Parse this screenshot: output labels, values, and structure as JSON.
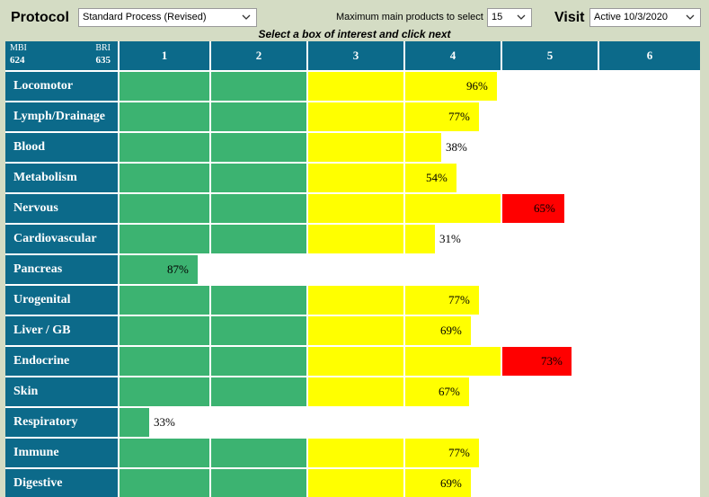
{
  "header": {
    "protocol_label": "Protocol",
    "protocol_value": "Standard Process (Revised)",
    "max_label": "Maximum main products to select",
    "max_value": "15",
    "visit_label": "Visit",
    "visit_value": "Active 10/3/2020",
    "instruction": "Select a box of interest and click next"
  },
  "grid": {
    "corner": {
      "mbi_label": "MBI",
      "mbi_value": "624",
      "bri_label": "BRI",
      "bri_value": "635"
    },
    "columns": [
      "1",
      "2",
      "3",
      "4",
      "5",
      "6"
    ],
    "colors": {
      "green": "#3cb371",
      "yellow": "#ffff00",
      "red": "#ff0000",
      "header_bg": "#0c6a8a"
    },
    "rows": [
      {
        "label": "Locomotor",
        "level": 3,
        "percent": 96,
        "percent_text": "96%"
      },
      {
        "label": "Lymph/Drainage",
        "level": 3,
        "percent": 77,
        "percent_text": "77%"
      },
      {
        "label": "Blood",
        "level": 3,
        "percent": 38,
        "percent_text": "38%"
      },
      {
        "label": "Metabolism",
        "level": 3,
        "percent": 54,
        "percent_text": "54%"
      },
      {
        "label": "Nervous",
        "level": 4,
        "percent": 65,
        "percent_text": "65%"
      },
      {
        "label": "Cardiovascular",
        "level": 3,
        "percent": 31,
        "percent_text": "31%"
      },
      {
        "label": "Pancreas",
        "level": 0,
        "percent": 87,
        "percent_text": "87%"
      },
      {
        "label": "Urogenital",
        "level": 3,
        "percent": 77,
        "percent_text": "77%"
      },
      {
        "label": "Liver / GB",
        "level": 3,
        "percent": 69,
        "percent_text": "69%"
      },
      {
        "label": "Endocrine",
        "level": 4,
        "percent": 73,
        "percent_text": "73%"
      },
      {
        "label": "Skin",
        "level": 3,
        "percent": 67,
        "percent_text": "67%"
      },
      {
        "label": "Respiratory",
        "level": 0,
        "percent": 33,
        "percent_text": "33%"
      },
      {
        "label": "Immune",
        "level": 3,
        "percent": 77,
        "percent_text": "77%"
      },
      {
        "label": "Digestive",
        "level": 3,
        "percent": 69,
        "percent_text": "69%"
      }
    ]
  }
}
